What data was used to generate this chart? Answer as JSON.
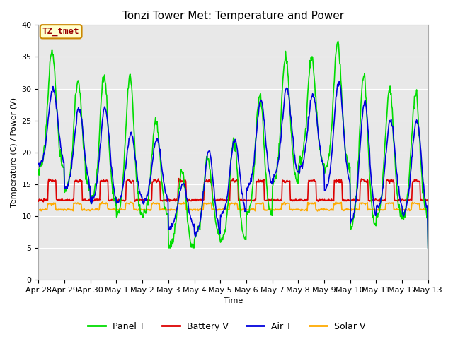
{
  "title": "Tonzi Tower Met: Temperature and Power",
  "xlabel": "Time",
  "ylabel": "Temperature (C) / Power (V)",
  "ylim": [
    0,
    40
  ],
  "yticks": [
    0,
    5,
    10,
    15,
    20,
    25,
    30,
    35,
    40
  ],
  "xtick_labels": [
    "Apr 28",
    "Apr 29",
    "Apr 30",
    "May 1",
    "May 2",
    "May 3",
    "May 4",
    "May 5",
    "May 6",
    "May 7",
    "May 8",
    "May 9",
    "May 10",
    "May 11",
    "May 12",
    "May 13"
  ],
  "colors": {
    "panel_t": "#00dd00",
    "battery_v": "#dd0000",
    "air_t": "#0000dd",
    "solar_v": "#ffaa00"
  },
  "legend_label_box": "TZ_tmet",
  "legend_label_box_facecolor": "#ffffcc",
  "legend_label_box_edgecolor": "#cc8800",
  "legend_label_box_textcolor": "#990000",
  "bg_color": "#e8e8e8",
  "line_width": 1.2,
  "title_fontsize": 11,
  "axis_fontsize": 8,
  "legend_fontsize": 9
}
